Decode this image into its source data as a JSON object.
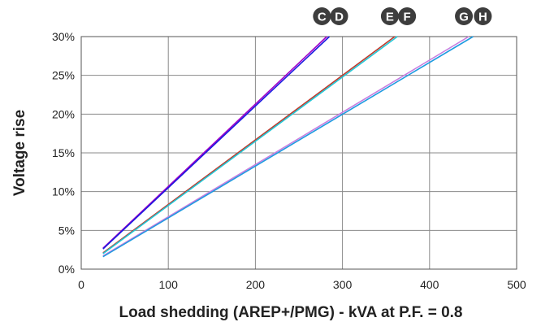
{
  "chart_data": {
    "type": "line",
    "xlabel": "Load shedding (AREP+/PMG) - kVA at P.F. = 0.8",
    "ylabel": "Voltage rise",
    "xlim": [
      0,
      500
    ],
    "ylim": [
      0,
      30
    ],
    "x_ticks": [
      "0",
      "100",
      "200",
      "300",
      "400",
      "500"
    ],
    "y_ticks": [
      "0%",
      "5%",
      "10%",
      "15%",
      "20%",
      "25%",
      "30%"
    ],
    "grid": true,
    "series": [
      {
        "name": "C",
        "color": "#a100c8",
        "x": [
          25,
          282
        ],
        "y": [
          2.7,
          30
        ]
      },
      {
        "name": "D",
        "color": "#1a1ae0",
        "x": [
          25,
          285
        ],
        "y": [
          2.6,
          30
        ]
      },
      {
        "name": "E",
        "color": "#c0392b",
        "x": [
          25,
          360
        ],
        "y": [
          2.1,
          30
        ]
      },
      {
        "name": "F",
        "color": "#22c7d6",
        "x": [
          25,
          363
        ],
        "y": [
          2.0,
          30
        ]
      },
      {
        "name": "G",
        "color": "#c77ddf",
        "x": [
          25,
          445
        ],
        "y": [
          1.7,
          30
        ]
      },
      {
        "name": "H",
        "color": "#1e9be0",
        "x": [
          25,
          450
        ],
        "y": [
          1.6,
          30
        ]
      }
    ]
  }
}
